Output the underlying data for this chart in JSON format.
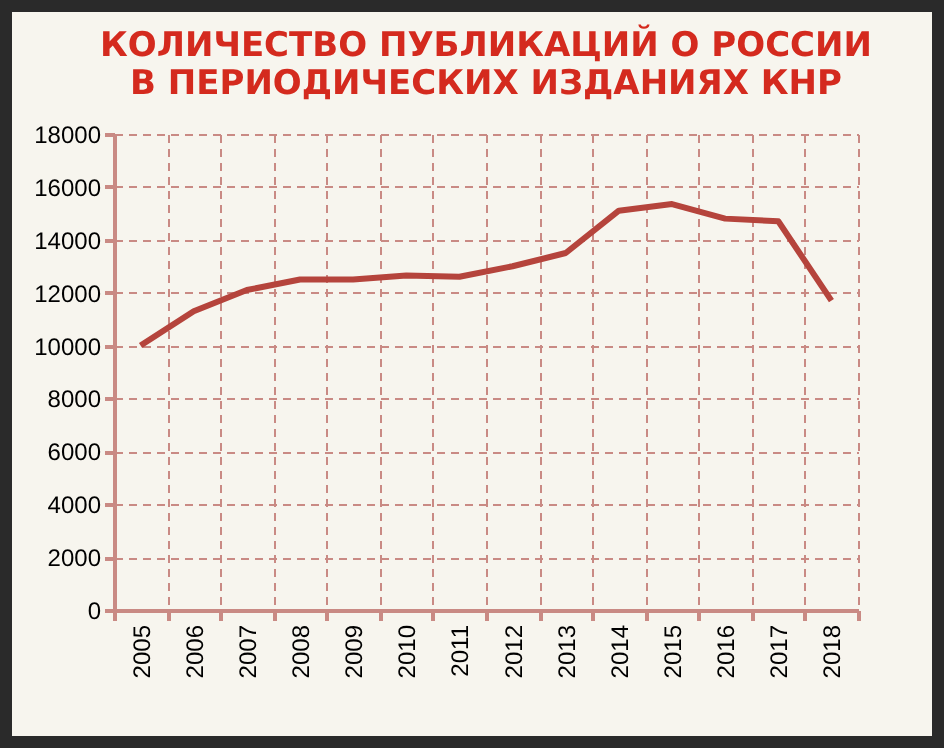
{
  "chart_data": {
    "type": "line",
    "title": [
      "КОЛИЧЕСТВО ПУБЛИКАЦИЙ О РОССИИ",
      "В ПЕРИОДИЧЕСКИХ ИЗДАНИЯХ КНР"
    ],
    "categories": [
      "2005",
      "2006",
      "2007",
      "2008",
      "2009",
      "2010",
      "2011",
      "2012",
      "2013",
      "2014",
      "2015",
      "2016",
      "2017",
      "2018"
    ],
    "series": [
      {
        "color": "#b5443c",
        "values": [
          10000,
          11300,
          12100,
          12500,
          12500,
          12650,
          12600,
          13000,
          13500,
          15100,
          15350,
          14800,
          14700,
          11700
        ]
      }
    ],
    "ylim": [
      0,
      18000
    ],
    "yticks": [
      0,
      2000,
      4000,
      6000,
      8000,
      10000,
      12000,
      14000,
      16000,
      18000
    ],
    "grid": true,
    "marker": "none",
    "line_style": "solid"
  }
}
